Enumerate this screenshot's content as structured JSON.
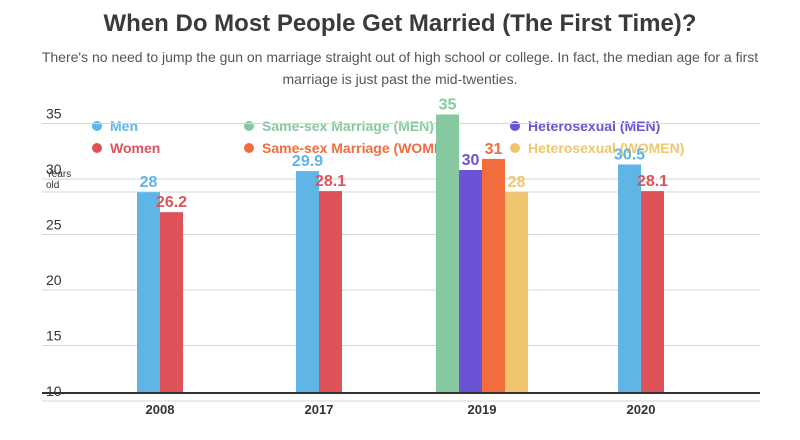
{
  "title": "When Do Most People Get Married (The First Time)?",
  "subtitle": "There's no need to jump the gun on marriage straight out of high school or college. In fact, the median age for a first marriage is just past the mid-twenties.",
  "legend": [
    {
      "label": "Men",
      "color": "#5fb5e5"
    },
    {
      "label": "Women",
      "color": "#e0525a"
    },
    {
      "label": "Same-sex Marriage (MEN)",
      "color": "#86c9a0"
    },
    {
      "label": "Same-sex Marriage (WOMEN)",
      "color": "#f36c3d"
    },
    {
      "label": "Heterosexual (MEN)",
      "color": "#6c53d6"
    },
    {
      "label": "Heterosexual (WOMEN)",
      "color": "#efc56e"
    }
  ],
  "chart_data": {
    "type": "bar",
    "title": "When Do Most People Get Married (The First Time)?",
    "ylabel": "Years old",
    "ylim": [
      10,
      35
    ],
    "yticks": [
      10,
      15,
      20,
      25,
      30,
      35
    ],
    "grid": true,
    "legend_position": "top",
    "categories": [
      "2008",
      "2017",
      "2019",
      "2020"
    ],
    "groups": [
      {
        "category": "2008",
        "bars": [
          {
            "series": "Men",
            "value": 28,
            "label": "28"
          },
          {
            "series": "Women",
            "value": 26.2,
            "label": "26.2"
          }
        ]
      },
      {
        "category": "2017",
        "bars": [
          {
            "series": "Men",
            "value": 29.9,
            "label": "29.9"
          },
          {
            "series": "Women",
            "value": 28.1,
            "label": "28.1"
          }
        ]
      },
      {
        "category": "2019",
        "bars": [
          {
            "series": "Same-sex Marriage (MEN)",
            "value": 35,
            "label": "35"
          },
          {
            "series": "Heterosexual (MEN)",
            "value": 30,
            "label": "30"
          },
          {
            "series": "Same-sex Marriage (WOMEN)",
            "value": 31,
            "label": "31"
          },
          {
            "series": "Heterosexual (WOMEN)",
            "value": 28,
            "label": "28"
          }
        ]
      },
      {
        "category": "2020",
        "bars": [
          {
            "series": "Men",
            "value": 30.5,
            "label": "30.5"
          },
          {
            "series": "Women",
            "value": 28.1,
            "label": "28.1"
          }
        ]
      }
    ]
  }
}
